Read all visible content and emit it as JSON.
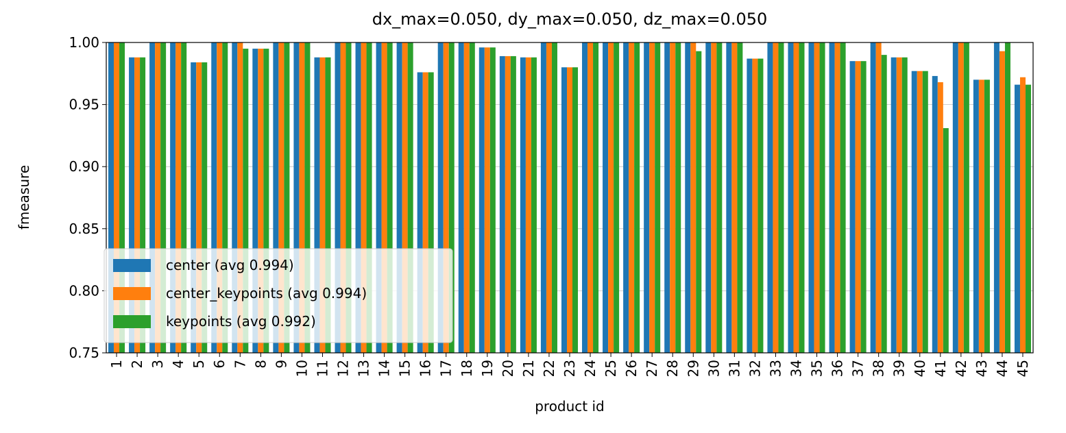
{
  "chart_data": {
    "type": "bar",
    "title": "dx_max=0.050, dy_max=0.050, dz_max=0.050",
    "x_label": "product id",
    "y_label": "fmeasure",
    "categories": [
      "1",
      "2",
      "3",
      "4",
      "5",
      "6",
      "7",
      "8",
      "9",
      "10",
      "11",
      "12",
      "13",
      "14",
      "15",
      "16",
      "17",
      "18",
      "19",
      "20",
      "21",
      "22",
      "23",
      "24",
      "25",
      "26",
      "27",
      "28",
      "29",
      "30",
      "31",
      "32",
      "33",
      "34",
      "35",
      "36",
      "37",
      "38",
      "39",
      "40",
      "41",
      "42",
      "43",
      "44",
      "45"
    ],
    "series": [
      {
        "name": "center (avg 0.994)",
        "color": "#1f77b4",
        "values": [
          1,
          0.988,
          1,
          1,
          0.984,
          1,
          1,
          0.995,
          1,
          1,
          0.988,
          1,
          1,
          1,
          1,
          0.976,
          1,
          1,
          0.996,
          0.989,
          0.988,
          1,
          0.98,
          1,
          1,
          1,
          1,
          1,
          1,
          1,
          1,
          0.987,
          1,
          1,
          1,
          1,
          0.985,
          1,
          0.988,
          0.977,
          0.973,
          1,
          0.97,
          1,
          0.966
        ]
      },
      {
        "name": "center_keypoints (avg 0.994)",
        "color": "#ff7f0e",
        "values": [
          1,
          0.988,
          1,
          1,
          0.984,
          1,
          1,
          0.995,
          1,
          1,
          0.988,
          1,
          1,
          1,
          1,
          0.976,
          1,
          1,
          0.996,
          0.989,
          0.988,
          1,
          0.98,
          1,
          1,
          1,
          1,
          1,
          1,
          1,
          1,
          0.987,
          1,
          1,
          1,
          1,
          0.985,
          1,
          0.988,
          0.977,
          0.968,
          1,
          0.97,
          0.993,
          0.972
        ]
      },
      {
        "name": "keypoints (avg 0.992)",
        "color": "#2ca02c",
        "values": [
          1,
          0.988,
          1,
          1,
          0.984,
          1,
          0.995,
          0.995,
          1,
          1,
          0.988,
          1,
          1,
          1,
          1,
          0.976,
          1,
          1,
          0.996,
          0.989,
          0.988,
          1,
          0.98,
          1,
          1,
          1,
          1,
          1,
          0.993,
          1,
          1,
          0.987,
          1,
          1,
          1,
          1,
          0.985,
          0.99,
          0.988,
          0.977,
          0.931,
          1,
          0.97,
          1,
          0.966
        ]
      }
    ],
    "ylim": [
      0.75,
      1
    ],
    "yticks": [
      0.75,
      {
        "value": 0.8,
        "label": "0.80"
      },
      0.85,
      {
        "value": 0.9,
        "label": "0.90"
      },
      0.95,
      {
        "value": 1,
        "label": "1.00"
      }
    ],
    "grid": "y",
    "legend": "lower left"
  }
}
